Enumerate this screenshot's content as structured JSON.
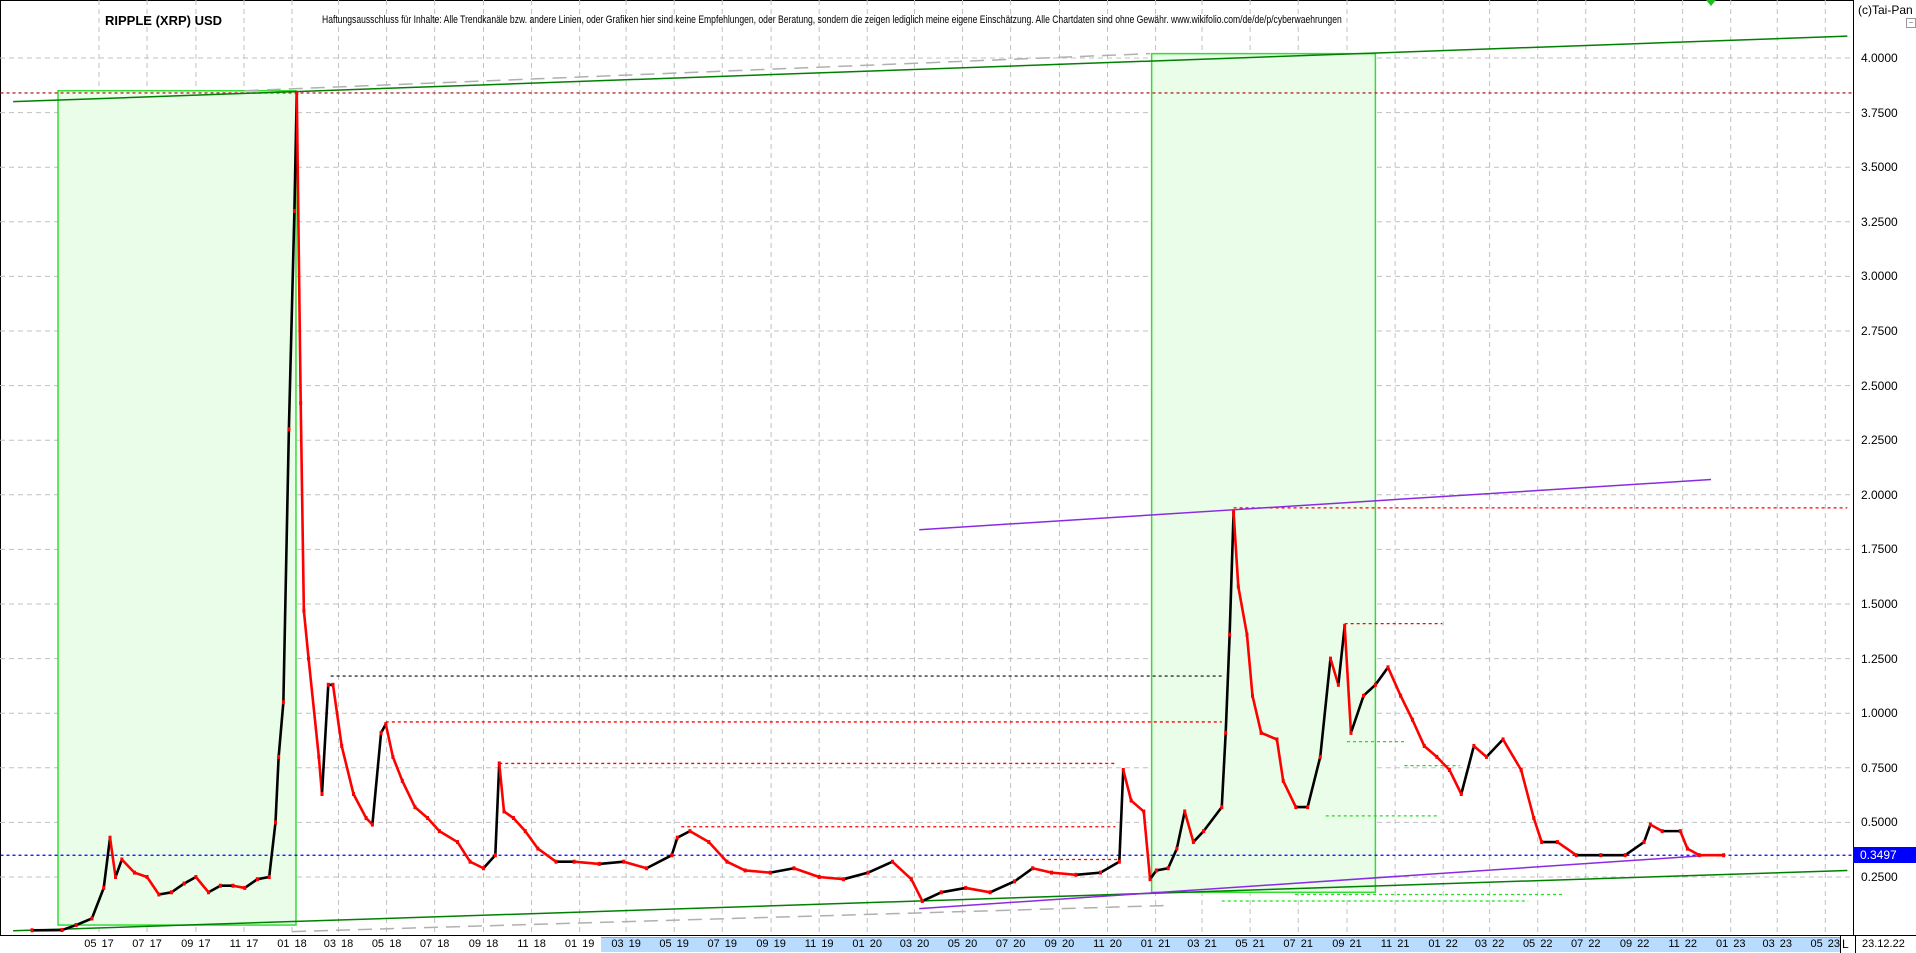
{
  "header": {
    "title": "RIPPLE (XRP) USD",
    "disclaimer": "Haftungsausschluss für Inhalte: Alle Trendkanäle bzw. andere Linien, oder Grafiken hier sind keine Empfehlungen, oder Beratung, sondern die zeigen lediglich meine eigene Einschätzung. Alle Chartdaten sind ohne Gewähr.  www.wikifolio.com/de/de/p/cyberwaehrungen",
    "copyright": "(c)Tai-Pan",
    "collapse_icon": "minus-box"
  },
  "chart_data": {
    "type": "candlestick-line",
    "title": "RIPPLE (XRP) USD",
    "xlabel": "",
    "ylabel": "",
    "xlim": [
      "2016-12-27",
      "2023-06-05"
    ],
    "ylim": [
      0,
      4.27
    ],
    "grid": true,
    "y_axis_side": "right",
    "y_ticks": [
      "0.2500",
      "0.5000",
      "0.7500",
      "1.0000",
      "1.2500",
      "1.5000",
      "1.7500",
      "2.0000",
      "2.2500",
      "2.5000",
      "2.7500",
      "3.0000",
      "3.2500",
      "3.5000",
      "3.7500",
      "4.0000"
    ],
    "x_ticks": [
      "05 17",
      "07 17",
      "09 17",
      "11 17",
      "01 18",
      "03 18",
      "05 18",
      "07 18",
      "09 18",
      "11 18",
      "01 19",
      "03 19",
      "05 19",
      "07 19",
      "09 19",
      "11 19",
      "01 20",
      "03 20",
      "05 20",
      "07 20",
      "09 20",
      "11 20",
      "01 21",
      "03 21",
      "05 21",
      "07 21",
      "09 21",
      "11 21",
      "01 22",
      "03 22",
      "05 22",
      "07 22",
      "09 22",
      "11 22",
      "01 23",
      "03 23",
      "05 23"
    ],
    "x_axis_highlight": [
      "03 19",
      "05 23"
    ],
    "axis_mode_label": "L",
    "last_date": "23.12.22",
    "last_price": "0.3497",
    "colors": {
      "up": "#000000",
      "down": "#ff0000",
      "channel": "#008000",
      "zone_fill": "#eafde9",
      "zone_border": "#33dd33",
      "purple": "#8a2be2",
      "last_price": "#0000ff",
      "support": "#22dd22",
      "resistance": "#ff0000",
      "grid": "#c0c0c0"
    },
    "series": [
      {
        "values": [
          [
            "2017-02-05",
            0.006
          ],
          [
            "2017-03-15",
            0.007
          ],
          [
            "2017-04-02",
            0.03
          ],
          [
            "2017-04-22",
            0.06
          ],
          [
            "2017-05-07",
            0.2
          ],
          [
            "2017-05-15",
            0.43
          ],
          [
            "2017-05-22",
            0.25
          ],
          [
            "2017-05-30",
            0.33
          ],
          [
            "2017-06-15",
            0.27
          ],
          [
            "2017-07-01",
            0.25
          ],
          [
            "2017-07-16",
            0.17
          ],
          [
            "2017-08-01",
            0.18
          ],
          [
            "2017-08-17",
            0.22
          ],
          [
            "2017-09-01",
            0.25
          ],
          [
            "2017-09-17",
            0.18
          ],
          [
            "2017-10-02",
            0.21
          ],
          [
            "2017-10-18",
            0.21
          ],
          [
            "2017-11-02",
            0.2
          ],
          [
            "2017-11-18",
            0.24
          ],
          [
            "2017-12-03",
            0.25
          ],
          [
            "2017-12-11",
            0.5
          ],
          [
            "2017-12-15",
            0.8
          ],
          [
            "2017-12-21",
            1.05
          ],
          [
            "2017-12-28",
            2.3
          ],
          [
            "2018-01-04",
            3.3
          ],
          [
            "2018-01-07",
            3.84
          ],
          [
            "2018-01-12",
            2.42
          ],
          [
            "2018-01-16",
            1.47
          ],
          [
            "2018-01-22",
            1.25
          ],
          [
            "2018-02-04",
            0.8
          ],
          [
            "2018-02-08",
            0.63
          ],
          [
            "2018-02-16",
            1.13
          ],
          [
            "2018-02-22",
            1.13
          ],
          [
            "2018-03-05",
            0.85
          ],
          [
            "2018-03-20",
            0.63
          ],
          [
            "2018-04-05",
            0.52
          ],
          [
            "2018-04-13",
            0.49
          ],
          [
            "2018-04-24",
            0.91
          ],
          [
            "2018-04-30",
            0.95
          ],
          [
            "2018-05-09",
            0.8
          ],
          [
            "2018-05-21",
            0.69
          ],
          [
            "2018-06-06",
            0.57
          ],
          [
            "2018-06-22",
            0.52
          ],
          [
            "2018-07-07",
            0.46
          ],
          [
            "2018-07-30",
            0.41
          ],
          [
            "2018-08-15",
            0.32
          ],
          [
            "2018-09-01",
            0.29
          ],
          [
            "2018-09-16",
            0.35
          ],
          [
            "2018-09-21",
            0.77
          ],
          [
            "2018-09-27",
            0.55
          ],
          [
            "2018-10-09",
            0.52
          ],
          [
            "2018-10-24",
            0.46
          ],
          [
            "2018-11-09",
            0.38
          ],
          [
            "2018-12-02",
            0.32
          ],
          [
            "2018-12-25",
            0.32
          ],
          [
            "2019-01-26",
            0.31
          ],
          [
            "2019-02-26",
            0.32
          ],
          [
            "2019-03-27",
            0.29
          ],
          [
            "2019-04-28",
            0.35
          ],
          [
            "2019-05-05",
            0.43
          ],
          [
            "2019-05-21",
            0.46
          ],
          [
            "2019-06-14",
            0.41
          ],
          [
            "2019-07-07",
            0.32
          ],
          [
            "2019-07-30",
            0.28
          ],
          [
            "2019-08-31",
            0.27
          ],
          [
            "2019-09-30",
            0.29
          ],
          [
            "2019-11-01",
            0.25
          ],
          [
            "2019-12-02",
            0.24
          ],
          [
            "2020-01-02",
            0.27
          ],
          [
            "2020-02-02",
            0.32
          ],
          [
            "2020-02-26",
            0.24
          ],
          [
            "2020-03-11",
            0.14
          ],
          [
            "2020-04-04",
            0.18
          ],
          [
            "2020-05-05",
            0.2
          ],
          [
            "2020-06-05",
            0.18
          ],
          [
            "2020-07-06",
            0.23
          ],
          [
            "2020-07-29",
            0.29
          ],
          [
            "2020-08-22",
            0.27
          ],
          [
            "2020-09-22",
            0.26
          ],
          [
            "2020-10-23",
            0.27
          ],
          [
            "2020-11-16",
            0.32
          ],
          [
            "2020-11-21",
            0.74
          ],
          [
            "2020-12-01",
            0.6
          ],
          [
            "2020-12-17",
            0.55
          ],
          [
            "2020-12-25",
            0.24
          ],
          [
            "2021-01-02",
            0.28
          ],
          [
            "2021-01-17",
            0.29
          ],
          [
            "2021-01-28",
            0.38
          ],
          [
            "2021-02-07",
            0.55
          ],
          [
            "2021-02-18",
            0.41
          ],
          [
            "2021-03-03",
            0.46
          ],
          [
            "2021-03-26",
            0.57
          ],
          [
            "2021-03-31",
            0.91
          ],
          [
            "2021-04-05",
            1.36
          ],
          [
            "2021-04-10",
            1.92
          ],
          [
            "2021-04-16",
            1.58
          ],
          [
            "2021-04-27",
            1.36
          ],
          [
            "2021-05-04",
            1.08
          ],
          [
            "2021-05-15",
            0.91
          ],
          [
            "2021-06-04",
            0.88
          ],
          [
            "2021-06-12",
            0.69
          ],
          [
            "2021-06-28",
            0.57
          ],
          [
            "2021-07-13",
            0.57
          ],
          [
            "2021-07-29",
            0.8
          ],
          [
            "2021-08-11",
            1.25
          ],
          [
            "2021-08-21",
            1.13
          ],
          [
            "2021-08-29",
            1.4
          ],
          [
            "2021-09-06",
            0.91
          ],
          [
            "2021-09-22",
            1.08
          ],
          [
            "2021-10-07",
            1.13
          ],
          [
            "2021-10-23",
            1.21
          ],
          [
            "2021-11-08",
            1.08
          ],
          [
            "2021-11-23",
            0.97
          ],
          [
            "2021-12-08",
            0.85
          ],
          [
            "2021-12-24",
            0.8
          ],
          [
            "2022-01-09",
            0.74
          ],
          [
            "2022-01-24",
            0.63
          ],
          [
            "2022-02-09",
            0.85
          ],
          [
            "2022-02-25",
            0.8
          ],
          [
            "2022-03-18",
            0.88
          ],
          [
            "2022-04-10",
            0.74
          ],
          [
            "2022-04-26",
            0.52
          ],
          [
            "2022-05-06",
            0.41
          ],
          [
            "2022-05-26",
            0.41
          ],
          [
            "2022-06-19",
            0.35
          ],
          [
            "2022-07-20",
            0.35
          ],
          [
            "2022-08-20",
            0.35
          ],
          [
            "2022-09-13",
            0.41
          ],
          [
            "2022-09-21",
            0.49
          ],
          [
            "2022-10-06",
            0.46
          ],
          [
            "2022-10-29",
            0.46
          ],
          [
            "2022-11-07",
            0.38
          ],
          [
            "2022-11-22",
            0.35
          ],
          [
            "2022-12-23",
            0.3497
          ]
        ]
      }
    ],
    "annotations": {
      "trend_lines": [
        {
          "kind": "channel-upper",
          "color": "#008000",
          "dash": false,
          "from": [
            "2017-01-12",
            3.8
          ],
          "to": [
            "2023-05-29",
            4.1
          ]
        },
        {
          "kind": "channel-lower",
          "color": "#008000",
          "dash": false,
          "from": [
            "2017-01-12",
            0.004
          ],
          "to": [
            "2023-05-29",
            0.28
          ]
        },
        {
          "kind": "gray-upper",
          "color": "#b0b0b0",
          "dash": true,
          "from": [
            "2017-11-02",
            3.85
          ],
          "to": [
            "2020-12-25",
            4.02
          ]
        },
        {
          "kind": "gray-lower",
          "color": "#b0b0b0",
          "dash": true,
          "from": [
            "2018-01-01",
            0.0
          ],
          "to": [
            "2021-01-20",
            0.12
          ]
        },
        {
          "kind": "purple-upper",
          "color": "#8a2be2",
          "dash": false,
          "from": [
            "2020-03-07",
            1.84
          ],
          "to": [
            "2022-12-07",
            2.07
          ]
        },
        {
          "kind": "purple-lower",
          "color": "#8a2be2",
          "dash": false,
          "from": [
            "2020-03-07",
            0.105
          ],
          "to": [
            "2022-12-07",
            0.35
          ]
        }
      ],
      "zones": [
        {
          "from": "2017-03-10",
          "to": "2018-01-06",
          "low": 0.03,
          "high": 3.85
        },
        {
          "from": "2020-12-27",
          "to": "2021-10-07",
          "low": 0.18,
          "high": 4.02
        }
      ],
      "levels": [
        {
          "value": 3.84,
          "from": "2016-12-27",
          "to": "2023-06-05",
          "color": "#b03030"
        },
        {
          "value": 1.94,
          "from": "2021-04-10",
          "to": "2023-05-29",
          "color": "#ff0000"
        },
        {
          "value": 1.41,
          "from": "2021-08-29",
          "to": "2021-12-31",
          "color": "#ff0000"
        },
        {
          "value": 1.17,
          "from": "2018-02-19",
          "to": "2021-03-26",
          "color": "#333333"
        },
        {
          "value": 0.96,
          "from": "2018-04-30",
          "to": "2021-03-26",
          "color": "#ff0000"
        },
        {
          "value": 0.77,
          "from": "2018-09-21",
          "to": "2020-11-11",
          "color": "#ff0000"
        },
        {
          "value": 0.48,
          "from": "2019-05-10",
          "to": "2020-11-11",
          "color": "#ff0000"
        },
        {
          "value": 0.33,
          "from": "2020-08-10",
          "to": "2020-11-16",
          "color": "#ff0000"
        },
        {
          "value": 0.87,
          "from": "2021-09-01",
          "to": "2021-11-13",
          "color": "#22dd22"
        },
        {
          "value": 0.76,
          "from": "2021-11-13",
          "to": "2022-01-22",
          "color": "#22dd22"
        },
        {
          "value": 0.53,
          "from": "2021-08-05",
          "to": "2021-12-24",
          "color": "#22dd22"
        },
        {
          "value": 0.17,
          "from": "2021-06-27",
          "to": "2022-06-02",
          "color": "#22dd22"
        },
        {
          "value": 0.14,
          "from": "2021-03-26",
          "to": "2022-04-19",
          "color": "#22dd22"
        },
        {
          "value": 0.3497,
          "from": "2016-12-27",
          "to": "2023-06-05",
          "color": "#0000ff"
        }
      ]
    }
  }
}
